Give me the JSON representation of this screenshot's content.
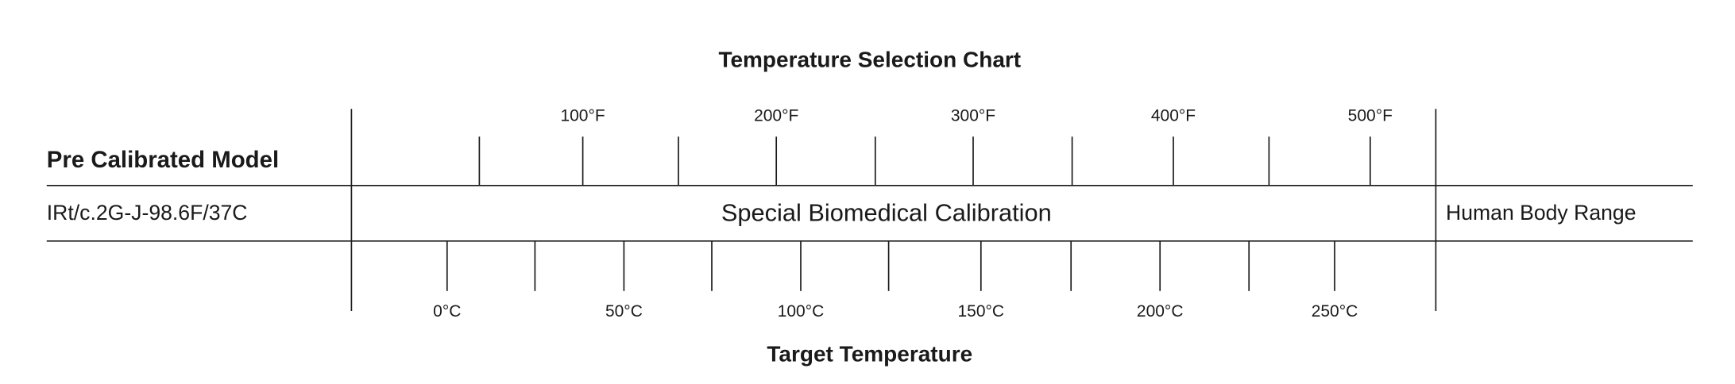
{
  "title": "Temperature Selection Chart",
  "header": {
    "label": "Pre Calibrated Model"
  },
  "row": {
    "model": "IRt/c.2G-J-98.6F/37C",
    "calibration": "Special Biomedical Calibration",
    "range": "Human Body Range"
  },
  "fahrenheit_labels": [
    "100°F",
    "200°F",
    "300°F",
    "400°F",
    "500°F"
  ],
  "celsius_labels": [
    "0°C",
    "50°C",
    "100°C",
    "150°C",
    "200°C",
    "250°C"
  ],
  "axis_title": "Target Temperature"
}
